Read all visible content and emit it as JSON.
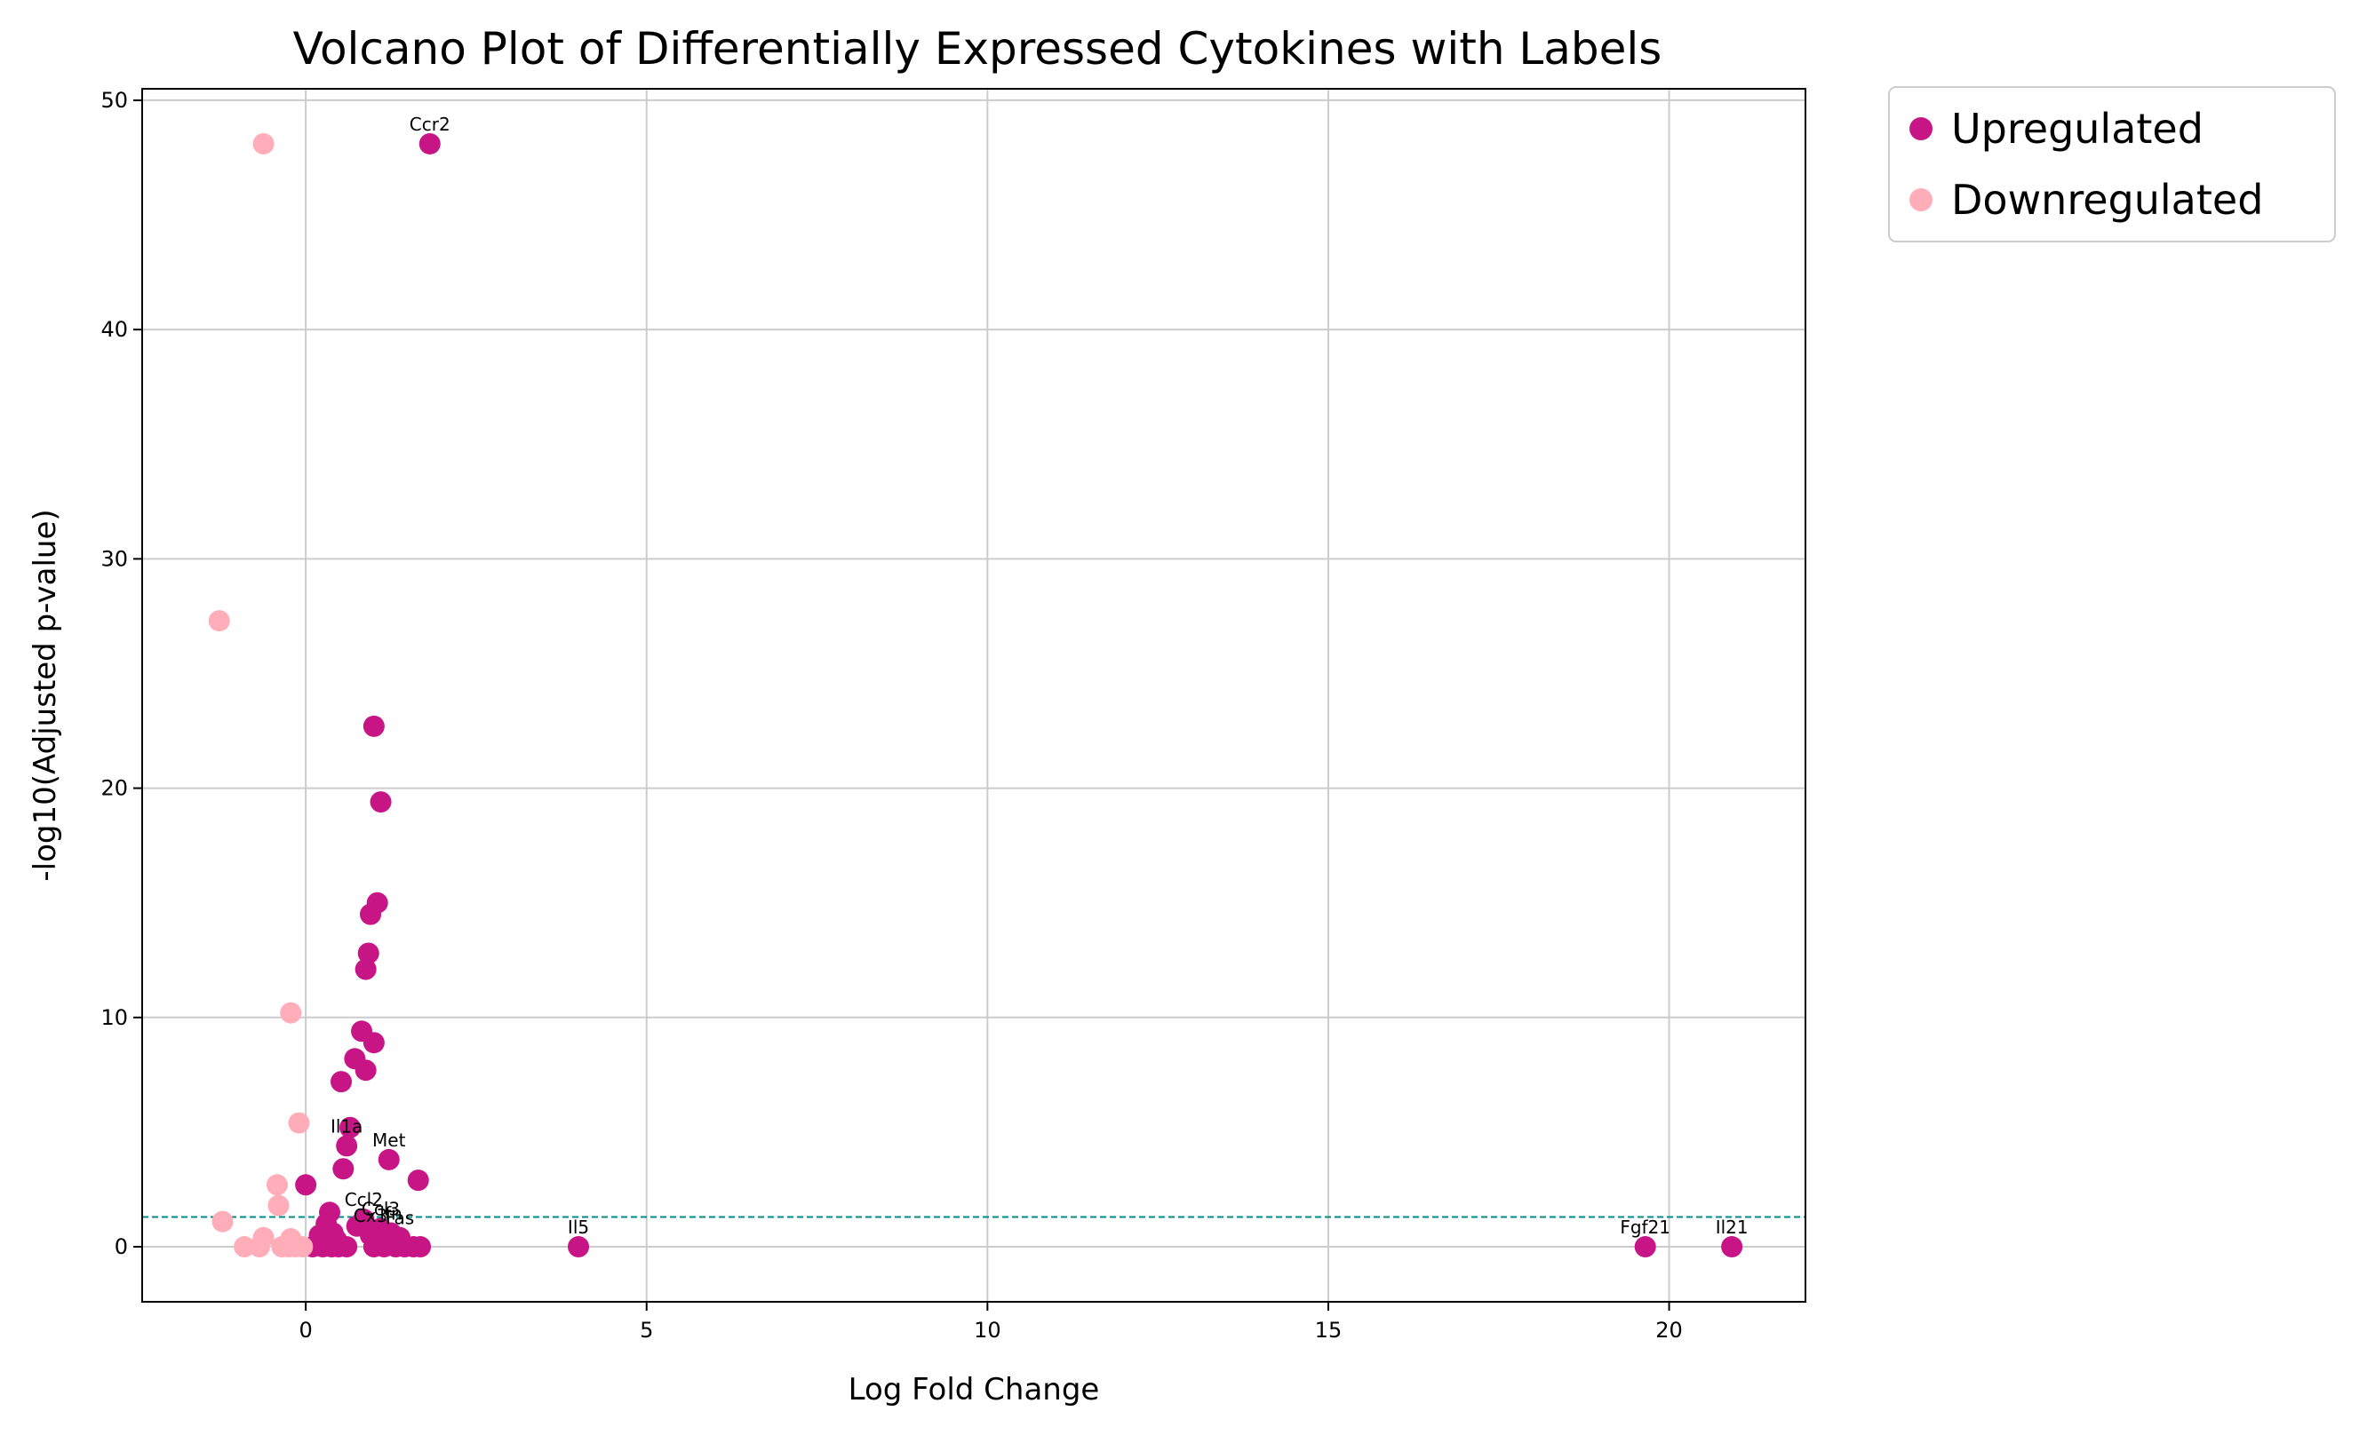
{
  "chart_data": {
    "type": "scatter",
    "title": "Volcano Plot of Differentially Expressed Cytokines with Labels",
    "xlabel": "Log Fold Change",
    "ylabel": "-log10(Adjusted p-value)",
    "xlim": [
      -2.4,
      22
    ],
    "ylim": [
      -2.4,
      50.5
    ],
    "xticks": [
      0,
      5,
      10,
      15,
      20
    ],
    "yticks": [
      0,
      10,
      20,
      30,
      40,
      50
    ],
    "grid": true,
    "legend_position": "outside-top-right",
    "threshold_line": {
      "y": 1.3,
      "color": "#008b8b"
    },
    "series": [
      {
        "name": "Upregulated",
        "color": "#c71585",
        "points": [
          {
            "x": 1.82,
            "y": 48.1,
            "label": "Ccr2"
          },
          {
            "x": 1.0,
            "y": 22.7,
            "label": ""
          },
          {
            "x": 1.1,
            "y": 19.4,
            "label": ""
          },
          {
            "x": 1.05,
            "y": 15.0,
            "label": ""
          },
          {
            "x": 0.95,
            "y": 14.5,
            "label": ""
          },
          {
            "x": 0.92,
            "y": 12.8,
            "label": ""
          },
          {
            "x": 0.88,
            "y": 12.1,
            "label": ""
          },
          {
            "x": 0.82,
            "y": 9.4,
            "label": ""
          },
          {
            "x": 1.0,
            "y": 8.9,
            "label": ""
          },
          {
            "x": 0.72,
            "y": 8.2,
            "label": ""
          },
          {
            "x": 0.88,
            "y": 7.7,
            "label": ""
          },
          {
            "x": 0.52,
            "y": 7.2,
            "label": ""
          },
          {
            "x": 0.65,
            "y": 5.2,
            "label": ""
          },
          {
            "x": 0.6,
            "y": 4.4,
            "label": "Il1a"
          },
          {
            "x": 1.22,
            "y": 3.8,
            "label": "Met"
          },
          {
            "x": 0.55,
            "y": 3.4,
            "label": ""
          },
          {
            "x": 1.65,
            "y": 2.9,
            "label": ""
          },
          {
            "x": 0.0,
            "y": 2.7,
            "label": ""
          },
          {
            "x": 0.35,
            "y": 1.5,
            "label": ""
          },
          {
            "x": 0.3,
            "y": 1.0,
            "label": ""
          },
          {
            "x": 0.75,
            "y": 0.9,
            "label": ""
          },
          {
            "x": 0.85,
            "y": 1.2,
            "label": "Ccl2"
          },
          {
            "x": 1.1,
            "y": 0.8,
            "label": "Ccl3"
          },
          {
            "x": 0.95,
            "y": 0.5,
            "label": "Cx3"
          },
          {
            "x": 1.25,
            "y": 0.6,
            "label": "Ifn"
          },
          {
            "x": 1.38,
            "y": 0.4,
            "label": "Fas"
          },
          {
            "x": 0.4,
            "y": 0.6,
            "label": ""
          },
          {
            "x": 0.45,
            "y": 0.3,
            "label": ""
          },
          {
            "x": 0.2,
            "y": 0.5,
            "label": ""
          },
          {
            "x": 0.1,
            "y": 0.0,
            "label": ""
          },
          {
            "x": 0.25,
            "y": 0.0,
            "label": ""
          },
          {
            "x": 0.38,
            "y": 0.0,
            "label": ""
          },
          {
            "x": 0.48,
            "y": 0.0,
            "label": ""
          },
          {
            "x": 0.6,
            "y": 0.0,
            "label": ""
          },
          {
            "x": 1.0,
            "y": 0.0,
            "label": ""
          },
          {
            "x": 1.15,
            "y": 0.0,
            "label": ""
          },
          {
            "x": 1.32,
            "y": 0.0,
            "label": ""
          },
          {
            "x": 1.45,
            "y": 0.0,
            "label": ""
          },
          {
            "x": 1.58,
            "y": 0.0,
            "label": ""
          },
          {
            "x": 1.68,
            "y": 0.0,
            "label": ""
          },
          {
            "x": 4.0,
            "y": 0.0,
            "label": "Il5"
          },
          {
            "x": 19.65,
            "y": 0.0,
            "label": "Fgf21"
          },
          {
            "x": 20.92,
            "y": 0.0,
            "label": "Il21"
          }
        ]
      },
      {
        "name": "Downregulated",
        "color": "#ffaeb9",
        "points": [
          {
            "x": -0.62,
            "y": 48.1
          },
          {
            "x": -1.27,
            "y": 27.3
          },
          {
            "x": -0.22,
            "y": 10.2
          },
          {
            "x": -0.1,
            "y": 5.4
          },
          {
            "x": -0.42,
            "y": 2.7
          },
          {
            "x": -0.4,
            "y": 1.8
          },
          {
            "x": -1.22,
            "y": 1.1
          },
          {
            "x": -0.62,
            "y": 0.4
          },
          {
            "x": -0.22,
            "y": 0.35
          },
          {
            "x": -0.9,
            "y": 0.0
          },
          {
            "x": -0.68,
            "y": 0.0
          },
          {
            "x": -0.35,
            "y": 0.0
          },
          {
            "x": -0.25,
            "y": 0.0
          },
          {
            "x": -0.15,
            "y": 0.0
          },
          {
            "x": -0.05,
            "y": 0.0
          }
        ]
      }
    ]
  }
}
